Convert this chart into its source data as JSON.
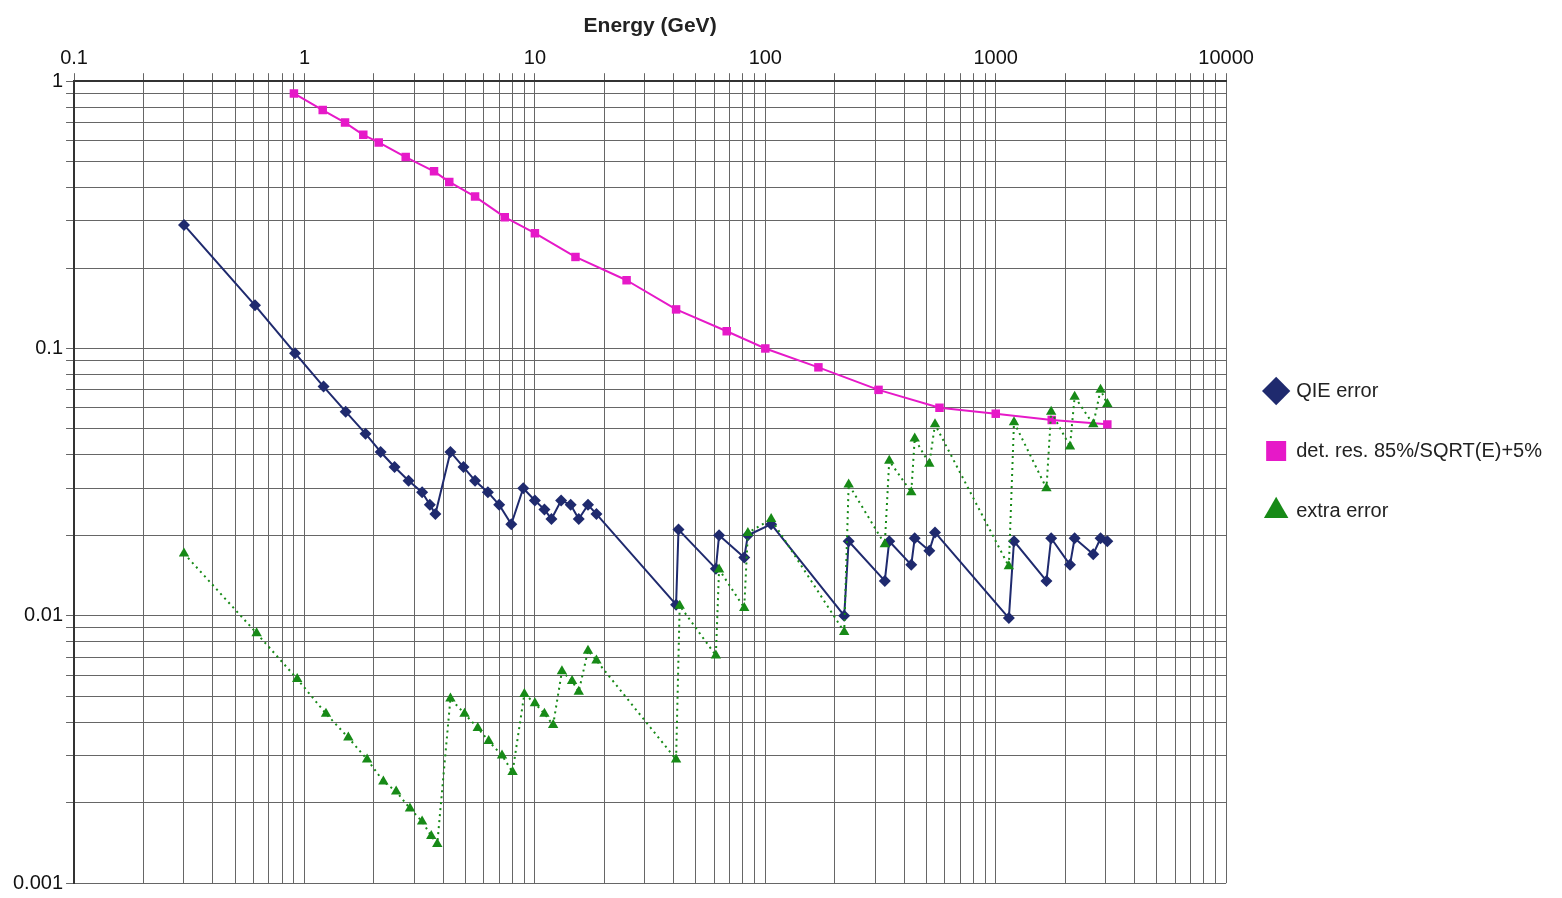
{
  "chart_data": {
    "type": "line",
    "xlabel": "Energy (GeV)",
    "log": "xy",
    "grid": true,
    "legend": "right",
    "xlim": [
      0.1,
      10000
    ],
    "ylim": [
      0.001,
      1
    ],
    "xticks": [
      0.1,
      {
        "value": 0.2,
        "label": null
      },
      {
        "value": 0.3,
        "label": null
      },
      {
        "value": 0.4,
        "label": null
      },
      {
        "value": 0.5,
        "label": null
      },
      {
        "value": 0.6,
        "label": null
      },
      {
        "value": 0.7,
        "label": null
      },
      {
        "value": 0.8,
        "label": null
      },
      {
        "value": 0.9,
        "label": null
      },
      1,
      {
        "value": 2,
        "label": null
      },
      {
        "value": 3,
        "label": null
      },
      {
        "value": 4,
        "label": null
      },
      {
        "value": 5,
        "label": null
      },
      {
        "value": 6,
        "label": null
      },
      {
        "value": 7,
        "label": null
      },
      {
        "value": 8,
        "label": null
      },
      {
        "value": 9,
        "label": null
      },
      10,
      {
        "value": 20,
        "label": null
      },
      {
        "value": 30,
        "label": null
      },
      {
        "value": 40,
        "label": null
      },
      {
        "value": 50,
        "label": null
      },
      {
        "value": 60,
        "label": null
      },
      {
        "value": 70,
        "label": null
      },
      {
        "value": 80,
        "label": null
      },
      {
        "value": 90,
        "label": null
      },
      100,
      {
        "value": 200,
        "label": null
      },
      {
        "value": 300,
        "label": null
      },
      {
        "value": 400,
        "label": null
      },
      {
        "value": 500,
        "label": null
      },
      {
        "value": 600,
        "label": null
      },
      {
        "value": 700,
        "label": null
      },
      {
        "value": 800,
        "label": null
      },
      {
        "value": 900,
        "label": null
      },
      1000,
      {
        "value": 2000,
        "label": null
      },
      {
        "value": 3000,
        "label": null
      },
      {
        "value": 4000,
        "label": null
      },
      {
        "value": 5000,
        "label": null
      },
      {
        "value": 6000,
        "label": null
      },
      {
        "value": 7000,
        "label": null
      },
      {
        "value": 8000,
        "label": null
      },
      {
        "value": 9000,
        "label": null
      },
      10000
    ],
    "yticks": [
      0.001,
      {
        "value": 0.002,
        "label": null
      },
      {
        "value": 0.003,
        "label": null
      },
      {
        "value": 0.004,
        "label": null
      },
      {
        "value": 0.005,
        "label": null
      },
      {
        "value": 0.006,
        "label": null
      },
      {
        "value": 0.007,
        "label": null
      },
      {
        "value": 0.008,
        "label": null
      },
      {
        "value": 0.009,
        "label": null
      },
      0.01,
      {
        "value": 0.02,
        "label": null
      },
      {
        "value": 0.03,
        "label": null
      },
      {
        "value": 0.04,
        "label": null
      },
      {
        "value": 0.05,
        "label": null
      },
      {
        "value": 0.06,
        "label": null
      },
      {
        "value": 0.07,
        "label": null
      },
      {
        "value": 0.08,
        "label": null
      },
      {
        "value": 0.09,
        "label": null
      },
      0.1,
      {
        "value": 0.2,
        "label": null
      },
      {
        "value": 0.3,
        "label": null
      },
      {
        "value": 0.4,
        "label": null
      },
      {
        "value": 0.5,
        "label": null
      },
      {
        "value": 0.6,
        "label": null
      },
      {
        "value": 0.7,
        "label": null
      },
      {
        "value": 0.8,
        "label": null
      },
      {
        "value": 0.9,
        "label": null
      },
      1
    ],
    "series": [
      {
        "name": "QIE error",
        "color": "#1f2a6e",
        "marker": "diamond",
        "line_style": "solid",
        "x": [
          0.3,
          0.61,
          0.91,
          1.21,
          1.51,
          1.84,
          2.14,
          2.46,
          2.83,
          3.24,
          3.5,
          3.7,
          4.3,
          4.9,
          5.5,
          6.25,
          7.0,
          7.9,
          8.9,
          10,
          11,
          11.8,
          13,
          14.3,
          15.5,
          17,
          18.5,
          41,
          42,
          61,
          63,
          81,
          84,
          106,
          220,
          230,
          330,
          345,
          430,
          445,
          515,
          545,
          1140,
          1200,
          1660,
          1740,
          2100,
          2200,
          2650,
          2850,
          3050
        ],
        "values": [
          0.29,
          0.145,
          0.096,
          0.072,
          0.058,
          0.048,
          0.041,
          0.036,
          0.032,
          0.029,
          0.026,
          0.024,
          0.041,
          0.036,
          0.032,
          0.029,
          0.026,
          0.022,
          0.03,
          0.027,
          0.025,
          0.023,
          0.027,
          0.026,
          0.023,
          0.026,
          0.024,
          0.011,
          0.021,
          0.015,
          0.02,
          0.0165,
          0.02,
          0.022,
          0.01,
          0.019,
          0.0135,
          0.019,
          0.0155,
          0.0195,
          0.0175,
          0.0205,
          0.0098,
          0.019,
          0.0135,
          0.0195,
          0.0155,
          0.0195,
          0.017,
          0.0195,
          0.019
        ]
      },
      {
        "name": "det. res. 85%/SQRT(E)+5%",
        "color": "#e619c8",
        "marker": "square",
        "line_style": "solid",
        "x": [
          0.9,
          1.2,
          1.5,
          1.8,
          2.1,
          2.75,
          3.65,
          4.25,
          5.5,
          7.4,
          10,
          15,
          25,
          41,
          68,
          100,
          170,
          310,
          570,
          1000,
          1750,
          3050
        ],
        "values": [
          0.9,
          0.78,
          0.7,
          0.63,
          0.59,
          0.52,
          0.46,
          0.42,
          0.37,
          0.31,
          0.27,
          0.22,
          0.18,
          0.14,
          0.116,
          0.1,
          0.085,
          0.07,
          0.06,
          0.057,
          0.054,
          0.052
        ]
      },
      {
        "name": "extra error",
        "color": "#178a17",
        "marker": "triangle",
        "line_style": "dotted",
        "x": [
          0.3,
          0.62,
          0.93,
          1.24,
          1.55,
          1.87,
          2.2,
          2.5,
          2.87,
          3.24,
          3.55,
          3.77,
          4.3,
          4.95,
          5.65,
          6.3,
          7.2,
          8.0,
          9.0,
          10,
          11,
          12,
          13.1,
          14.5,
          15.5,
          17,
          18.5,
          41,
          42.5,
          61,
          63,
          81,
          84,
          106,
          220,
          230,
          330,
          345,
          430,
          445,
          515,
          545,
          1140,
          1200,
          1660,
          1740,
          2100,
          2200,
          2650,
          2850,
          3050
        ],
        "values": [
          0.0171,
          0.0086,
          0.0058,
          0.0043,
          0.0035,
          0.0029,
          0.0024,
          0.0022,
          0.0019,
          0.0017,
          0.0015,
          0.0014,
          0.0049,
          0.0043,
          0.0038,
          0.0034,
          0.003,
          0.0026,
          0.0051,
          0.0047,
          0.0043,
          0.0039,
          0.0062,
          0.0057,
          0.0052,
          0.0074,
          0.0068,
          0.0029,
          0.0109,
          0.0071,
          0.0149,
          0.0107,
          0.0204,
          0.023,
          0.0087,
          0.031,
          0.0185,
          0.038,
          0.029,
          0.046,
          0.037,
          0.052,
          0.0153,
          0.053,
          0.03,
          0.058,
          0.043,
          0.066,
          0.052,
          0.07,
          0.062
        ]
      }
    ]
  }
}
